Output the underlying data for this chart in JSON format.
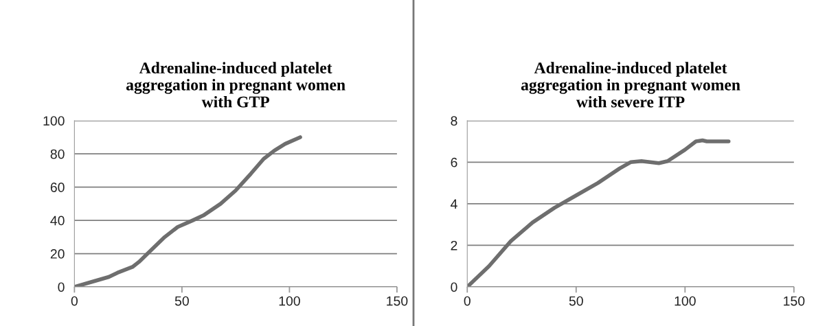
{
  "chart_data": [
    {
      "type": "line",
      "title": "Adrenaline-induced platelet\naggregation in pregnant women\nwith GTP",
      "x": [
        0,
        8,
        16,
        20,
        27,
        30,
        34,
        42,
        48,
        55,
        60,
        68,
        75,
        82,
        88,
        93,
        98,
        105
      ],
      "series": [
        {
          "color": "#6e6e6e",
          "values": [
            0,
            3,
            6,
            8.5,
            12,
            15,
            20,
            30,
            36,
            40,
            43,
            50,
            58,
            68,
            77,
            82,
            86,
            90
          ]
        }
      ],
      "xlim": [
        0,
        150
      ],
      "xticks": [
        0,
        50,
        100,
        150
      ],
      "ylim": [
        0,
        100
      ],
      "yticks": [
        0,
        20,
        40,
        60,
        80,
        100
      ],
      "grid": "y",
      "legend": false,
      "marker": "none",
      "line_style": "solid"
    },
    {
      "type": "line",
      "title": "Adrenaline-induced platelet\naggregation in pregnant women\nwith severe ITP",
      "x": [
        0,
        10,
        20,
        30,
        40,
        50,
        60,
        70,
        75,
        80,
        88,
        92,
        100,
        105,
        108,
        110,
        120
      ],
      "series": [
        {
          "color": "#6e6e6e",
          "values": [
            0,
            1,
            2.2,
            3.1,
            3.8,
            4.4,
            5.0,
            5.7,
            6.0,
            6.05,
            5.95,
            6.05,
            6.6,
            7.0,
            7.05,
            7.0,
            7.0
          ]
        }
      ],
      "xlim": [
        0,
        150
      ],
      "xticks": [
        0,
        50,
        100,
        150
      ],
      "ylim": [
        0,
        8
      ],
      "yticks": [
        0,
        2,
        4,
        6,
        8
      ],
      "grid": "y",
      "legend": false,
      "marker": "none",
      "line_style": "solid"
    }
  ]
}
